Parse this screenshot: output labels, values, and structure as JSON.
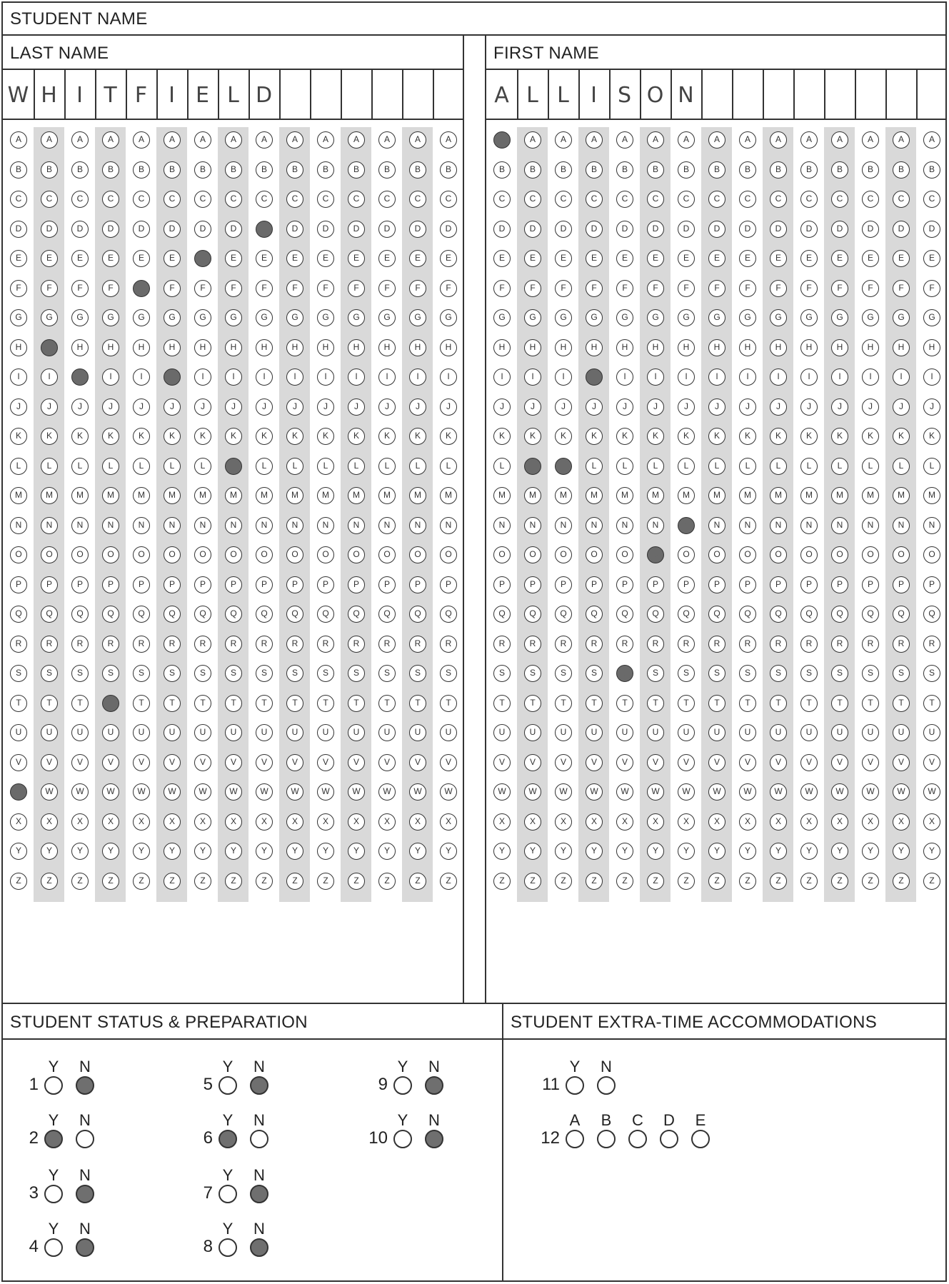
{
  "header": {
    "title": "STUDENT NAME"
  },
  "last_name": {
    "label": "LAST NAME",
    "handwritten": [
      "W",
      "H",
      "I",
      "T",
      "F",
      "I",
      "E",
      "L",
      "D",
      "",
      "",
      "",
      "",
      "",
      ""
    ],
    "filled_letters": [
      "W",
      "H",
      "I",
      "T",
      "F",
      "I",
      "E",
      "L",
      "D",
      "",
      "",
      "",
      "",
      "",
      ""
    ]
  },
  "first_name": {
    "label": "FIRST NAME",
    "handwritten": [
      "A",
      "L",
      "L",
      "I",
      "S",
      "O",
      "N",
      "",
      "",
      "",
      "",
      "",
      "",
      "",
      ""
    ],
    "filled_letters": [
      "A",
      "L",
      "L",
      "I",
      "S",
      "O",
      "N",
      "",
      "",
      "",
      "",
      "",
      "",
      "",
      ""
    ]
  },
  "alphabet": [
    "A",
    "B",
    "C",
    "D",
    "E",
    "F",
    "G",
    "H",
    "I",
    "J",
    "K",
    "L",
    "M",
    "N",
    "O",
    "P",
    "Q",
    "R",
    "S",
    "T",
    "U",
    "V",
    "W",
    "X",
    "Y",
    "Z"
  ],
  "status": {
    "label": "STUDENT STATUS & PREPARATION",
    "questions": [
      {
        "num": "1",
        "options": [
          "Y",
          "N"
        ],
        "answer": "N"
      },
      {
        "num": "2",
        "options": [
          "Y",
          "N"
        ],
        "answer": "Y"
      },
      {
        "num": "3",
        "options": [
          "Y",
          "N"
        ],
        "answer": "N"
      },
      {
        "num": "4",
        "options": [
          "Y",
          "N"
        ],
        "answer": "N"
      },
      {
        "num": "5",
        "options": [
          "Y",
          "N"
        ],
        "answer": "N"
      },
      {
        "num": "6",
        "options": [
          "Y",
          "N"
        ],
        "answer": "Y"
      },
      {
        "num": "7",
        "options": [
          "Y",
          "N"
        ],
        "answer": "N"
      },
      {
        "num": "8",
        "options": [
          "Y",
          "N"
        ],
        "answer": "N"
      },
      {
        "num": "9",
        "options": [
          "Y",
          "N"
        ],
        "answer": "N"
      },
      {
        "num": "10",
        "options": [
          "Y",
          "N"
        ],
        "answer": "N"
      }
    ]
  },
  "accommodations": {
    "label": "STUDENT EXTRA-TIME ACCOMMODATIONS",
    "questions": [
      {
        "num": "11",
        "options": [
          "Y",
          "N"
        ],
        "answer": ""
      },
      {
        "num": "12",
        "options": [
          "A",
          "B",
          "C",
          "D",
          "E"
        ],
        "answer": ""
      }
    ]
  },
  "colors": {
    "fill": "#6a6a6a",
    "shade": "#d9d9d9",
    "line": "#333333"
  }
}
